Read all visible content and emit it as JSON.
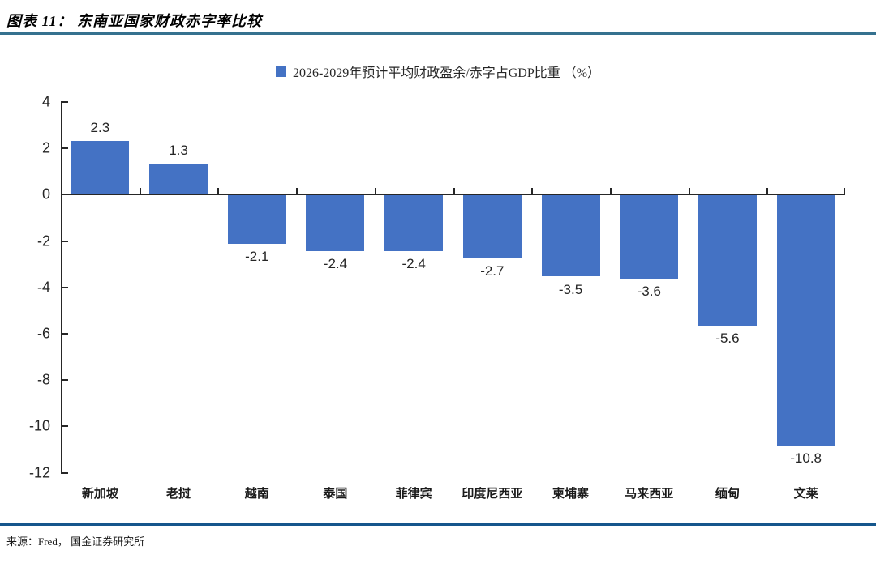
{
  "header": {
    "title": "图表 11： 东南亚国家财政赤字率比较"
  },
  "legend": {
    "label": "2026-2029年预计平均财政盈余/赤字占GDP比重 （%）"
  },
  "chart_data": {
    "type": "bar",
    "categories": [
      "新加坡",
      "老挝",
      "越南",
      "泰国",
      "菲律宾",
      "印度尼西亚",
      "柬埔寨",
      "马来西亚",
      "缅甸",
      "文莱"
    ],
    "values": [
      2.3,
      1.3,
      -2.1,
      -2.4,
      -2.4,
      -2.7,
      -3.5,
      -3.6,
      -5.6,
      -10.8
    ],
    "value_labels": [
      "2.3",
      "1.3",
      "-2.1",
      "-2.4",
      "-2.4",
      "-2.7",
      "-3.5",
      "-3.6",
      "-5.6",
      "-10.8"
    ],
    "title": "2026-2029年预计平均财政盈余/赤字占GDP比重 （%）",
    "xlabel": "",
    "ylabel": "",
    "ylim": [
      -12,
      4
    ],
    "yticks": [
      4,
      2,
      0,
      -2,
      -4,
      -6,
      -8,
      -10,
      -12
    ],
    "grid": false,
    "legend_position": "top-center",
    "data_labels": true
  },
  "footer": {
    "source": "来源：Fred， 国金证券研究所"
  },
  "colors": {
    "bar": "#4472C4",
    "axis": "#262626",
    "title_rule": "#35718F",
    "footer_rule": "#15568C"
  }
}
